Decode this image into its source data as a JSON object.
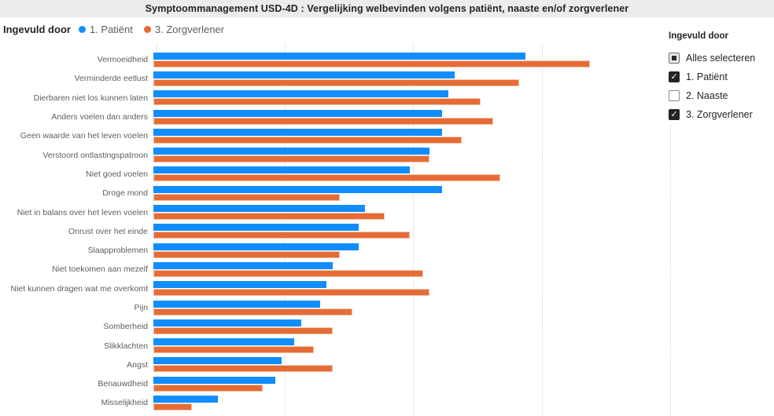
{
  "title": "Symptoommanagement USD-4D : Vergelijking welbevinden volgens patiënt, naaste en/of zorgverlener",
  "legend": {
    "label": "Ingevuld door",
    "items": [
      {
        "label": "1. Patiënt",
        "color": "#118DFF"
      },
      {
        "label": "3. Zorgverlener",
        "color": "#E66C37"
      }
    ]
  },
  "filter_panel": {
    "header": "Ingevuld door",
    "items": [
      {
        "label": "Alles selecteren",
        "state": "partial"
      },
      {
        "label": "1. Patiënt",
        "state": "checked"
      },
      {
        "label": "2. Naaste",
        "state": "unchecked"
      },
      {
        "label": "3. Zorgverlener",
        "state": "checked"
      }
    ]
  },
  "chart_data": {
    "type": "bar",
    "orientation": "horizontal",
    "title": "Symptoommanagement USD-4D : Vergelijking welbevinden volgens patiënt, naaste en/of zorgverlener",
    "xlabel": "",
    "ylabel": "",
    "xlim": [
      0,
      4.1
    ],
    "gridlines": [
      0,
      1,
      2,
      3,
      4
    ],
    "grid": "dotted-vertical",
    "legend_position": "top-left",
    "categories": [
      "Vermoeidheid",
      "Verminderde eetlust",
      "Dierbaren niet los kunnen laten",
      "Anders voelen dan anders",
      "Geen waarde van het leven voelen",
      "Verstoord ontlastingspatroon",
      "Niet goed voelen",
      "Droge mond",
      "Niet in balans over het leven voelen",
      "Onrust over het einde",
      "Slaapproblemen",
      "Niet toekomen aan mezelf",
      "Niet kunnen dragen wat me overkomt",
      "Pijn",
      "Somberheid",
      "Slikklachten",
      "Angst",
      "Benauwdheid",
      "Misselijkheid"
    ],
    "series": [
      {
        "name": "1. Patiënt",
        "color": "#118DFF",
        "values": [
          2.9,
          2.35,
          2.3,
          2.25,
          2.25,
          2.15,
          2.0,
          2.25,
          1.65,
          1.6,
          1.6,
          1.4,
          1.35,
          1.3,
          1.15,
          1.1,
          1.0,
          0.95,
          0.5
        ]
      },
      {
        "name": "3. Zorgverlener",
        "color": "#E66C37",
        "values": [
          3.4,
          2.85,
          2.55,
          2.65,
          2.4,
          2.15,
          2.7,
          1.45,
          1.8,
          2.0,
          1.45,
          2.1,
          2.15,
          1.55,
          1.4,
          1.25,
          1.4,
          0.85,
          0.3
        ]
      }
    ]
  }
}
